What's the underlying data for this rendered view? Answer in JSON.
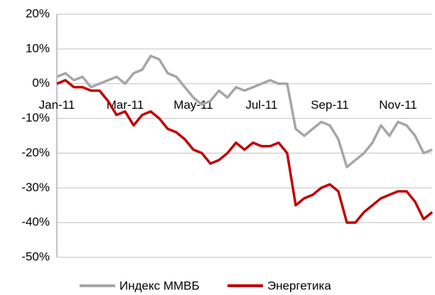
{
  "chart_data": {
    "type": "line",
    "categories": [
      "Jan-11",
      null,
      null,
      null,
      null,
      null,
      null,
      null,
      "Mar-11",
      null,
      null,
      null,
      null,
      null,
      null,
      null,
      "May-11",
      null,
      null,
      null,
      null,
      null,
      null,
      null,
      "Jul-11",
      null,
      null,
      null,
      null,
      null,
      null,
      null,
      "Sep-11",
      null,
      null,
      null,
      null,
      null,
      null,
      null,
      "Nov-11",
      null,
      null,
      null,
      null
    ],
    "series": [
      {
        "name": "Индекс ММВБ",
        "color": "#a6a6a6",
        "values": [
          2,
          3,
          1,
          2,
          -1,
          0,
          1,
          2,
          0,
          3,
          4,
          8,
          7,
          3,
          2,
          -1,
          -4,
          -6,
          -5,
          -2,
          -4,
          -1,
          -2,
          -1,
          0,
          1,
          0,
          0,
          -13,
          -15,
          -13,
          -11,
          -12,
          -16,
          -24,
          -22,
          -20,
          -17,
          -12,
          -15,
          -11,
          -12,
          -15,
          -20,
          -19
        ]
      },
      {
        "name": "Энергетика",
        "color": "#c00000",
        "values": [
          0,
          1,
          -1,
          -1,
          -2,
          -2,
          -5,
          -9,
          -8,
          -12,
          -9,
          -8,
          -10,
          -13,
          -14,
          -16,
          -19,
          -20,
          -23,
          -22,
          -20,
          -17,
          -19,
          -17,
          -18,
          -18,
          -17,
          -20,
          -35,
          -33,
          -32,
          -30,
          -29,
          -31,
          -40,
          -40,
          -37,
          -35,
          -33,
          -32,
          -31,
          -31,
          -34,
          -39,
          -37
        ]
      }
    ],
    "ylim": [
      -50,
      20
    ],
    "yticks": [
      {
        "value": -50,
        "label": "-50%"
      },
      {
        "value": -40,
        "label": "-40%"
      },
      {
        "value": -30,
        "label": "-30%"
      },
      {
        "value": -20,
        "label": "-20%"
      },
      {
        "value": -10,
        "label": "-10%"
      },
      {
        "value": 0,
        "label": "0%"
      },
      {
        "value": 10,
        "label": "10%"
      },
      {
        "value": 20,
        "label": "20%"
      }
    ],
    "grid": true,
    "legend": "bottom"
  }
}
